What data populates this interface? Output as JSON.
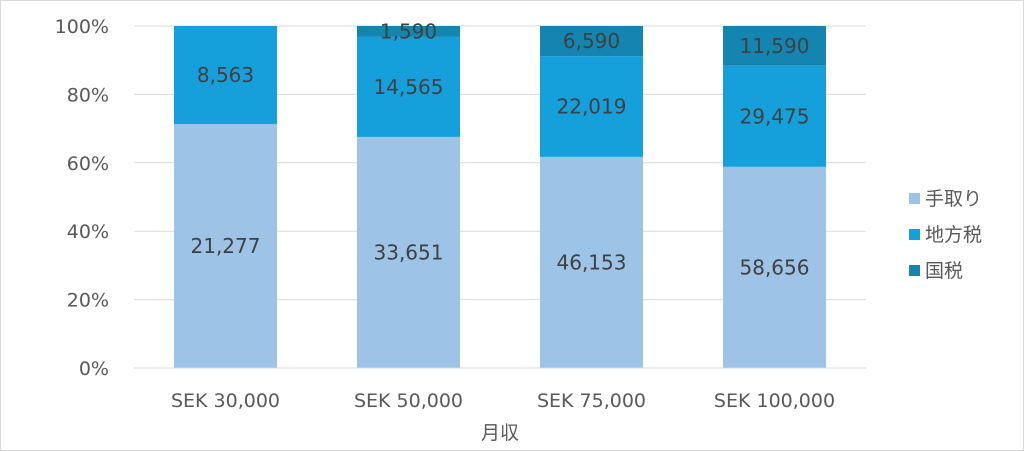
{
  "chart_data": {
    "type": "bar",
    "stacked": "percent",
    "categories": [
      "SEK 30,000",
      "SEK 50,000",
      "SEK 75,000",
      "SEK 100,000"
    ],
    "series": [
      {
        "name": "手取り",
        "values": [
          21277,
          33651,
          46153,
          58656
        ],
        "labels": [
          "21,277",
          "33,651",
          "46,153",
          "58,656"
        ],
        "color": "#9dc3e6"
      },
      {
        "name": "地方税",
        "values": [
          8563,
          14565,
          22019,
          29475
        ],
        "labels": [
          "8,563",
          "14,565",
          "22,019",
          "29,475"
        ],
        "color": "#15a0db"
      },
      {
        "name": "国税",
        "values": [
          0,
          1590,
          6590,
          11590
        ],
        "labels": [
          "",
          "1,590",
          "6,590",
          "11,590"
        ],
        "color": "#1385b0"
      }
    ],
    "y_ticks": [
      "0%",
      "20%",
      "40%",
      "60%",
      "80%",
      "100%"
    ],
    "ylim": [
      0,
      100
    ],
    "xlabel": "月収",
    "ylabel": "",
    "grid": true,
    "legend_position": "right"
  }
}
